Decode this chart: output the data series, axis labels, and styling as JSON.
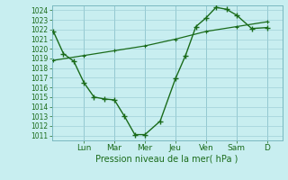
{
  "title": "",
  "xlabel": "Pression niveau de la mer( hPa )",
  "background_color": "#c8eef0",
  "grid_color": "#a0d0d8",
  "line_color": "#1a6b1a",
  "ylim": [
    1010.5,
    1024.5
  ],
  "yticks": [
    1011,
    1012,
    1013,
    1014,
    1015,
    1016,
    1017,
    1018,
    1019,
    1020,
    1021,
    1022,
    1023,
    1024
  ],
  "day_labels": [
    "Lun",
    "Mar",
    "Mer",
    "Jeu",
    "Ven",
    "Sam",
    "D"
  ],
  "day_positions": [
    1,
    2,
    3,
    4,
    5,
    6,
    7
  ],
  "xlim": [
    -0.05,
    7.5
  ],
  "line1_x": [
    0.0,
    0.33,
    0.67,
    1.0,
    1.33,
    1.67,
    2.0,
    2.33,
    2.67,
    3.0,
    3.5,
    4.0,
    4.33,
    4.67,
    5.0,
    5.33,
    5.67,
    6.0,
    6.5,
    7.0
  ],
  "line1_y": [
    1021.8,
    1019.5,
    1018.7,
    1016.5,
    1015.0,
    1014.8,
    1014.7,
    1013.0,
    1011.1,
    1011.1,
    1012.5,
    1016.9,
    1019.3,
    1022.3,
    1023.2,
    1024.3,
    1024.1,
    1023.5,
    1022.1,
    1022.2
  ],
  "line2_x": [
    0.0,
    1.0,
    2.0,
    3.0,
    4.0,
    5.0,
    6.0,
    7.0
  ],
  "line2_y": [
    1018.8,
    1019.3,
    1019.8,
    1020.3,
    1021.0,
    1021.8,
    1022.3,
    1022.8
  ]
}
